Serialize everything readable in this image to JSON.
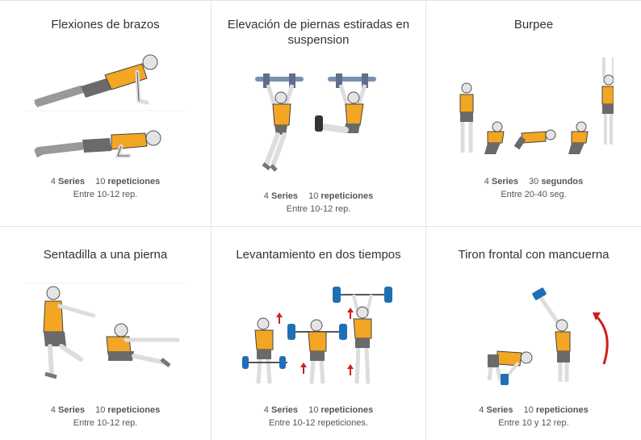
{
  "colors": {
    "shirt": "#f2a623",
    "shorts": "#6a6a6a",
    "skin": "#eaeaea",
    "plate": "#1f6fb5",
    "arrow": "#d11d1d",
    "border": "#e2e2e2"
  },
  "exercises": [
    {
      "title": "Flexiones de brazos",
      "series_num": "4",
      "series_label": "Series",
      "amount_num": "10",
      "amount_label": "repeticiones",
      "range": "Entre 10-12 rep.",
      "illustration": "push-up"
    },
    {
      "title": "Elevación de piernas estiradas en suspension",
      "series_num": "4",
      "series_label": "Series",
      "amount_num": "10",
      "amount_label": "repeticiones",
      "range": "Entre 10-12 rep.",
      "illustration": "hanging-leg-raise"
    },
    {
      "title": "Burpee",
      "series_num": "4",
      "series_label": "Series",
      "amount_num": "30",
      "amount_label": "segundos",
      "range": "Entre 20-40 seg.",
      "illustration": "burpee"
    },
    {
      "title": "Sentadilla a una pierna",
      "series_num": "4",
      "series_label": "Series",
      "amount_num": "10",
      "amount_label": "repeticiones",
      "range": "Entre 10-12 rep.",
      "illustration": "pistol-squat"
    },
    {
      "title": "Levantamiento en dos tiempos",
      "series_num": "4",
      "series_label": "Series",
      "amount_num": "10",
      "amount_label": "repeticiones",
      "range": "Entre 10-12 repeticiones.",
      "illustration": "clean-and-jerk"
    },
    {
      "title": "Tiron frontal con mancuerna",
      "series_num": "4",
      "series_label": "Series",
      "amount_num": "10",
      "amount_label": "repeticiones",
      "range": "Entre 10 y 12 rep.",
      "illustration": "dumbbell-snatch"
    }
  ]
}
